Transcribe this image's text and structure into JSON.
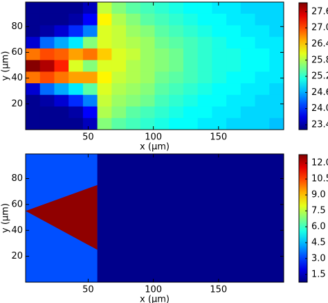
{
  "chart_data": [
    {
      "type": "heatmap",
      "xlabel": "x (μm)",
      "ylabel": "y (μm)",
      "xlim": [
        2,
        200
      ],
      "ylim": [
        0,
        99
      ],
      "xticks": [
        50,
        100,
        150
      ],
      "yticks": [
        20,
        40,
        60,
        80
      ],
      "clim": [
        23.22,
        27.93
      ],
      "cticks": [
        {
          "value": 23.4,
          "label": "23.40"
        },
        {
          "value": 24,
          "label": "24.00"
        },
        {
          "value": 24.6,
          "label": "24.60"
        },
        {
          "value": 25.2,
          "label": "25.20"
        },
        {
          "value": 25.8,
          "label": "25.80"
        },
        {
          "value": 26.4,
          "label": "26.40"
        },
        {
          "value": 27,
          "label": "27.00"
        },
        {
          "value": 27.6,
          "label": "27.60"
        }
      ],
      "z": [
        [
          23.3,
          23.3,
          23.3,
          23.6,
          26.8,
          27.9,
          26.8,
          23.6,
          23.3,
          23.3,
          23.3
        ],
        [
          23.3,
          23.3,
          23.4,
          24.3,
          27.0,
          27.7,
          27.0,
          24.3,
          23.4,
          23.3,
          23.3
        ],
        [
          23.3,
          23.3,
          23.6,
          24.6,
          26.9,
          27.2,
          26.8,
          24.6,
          23.6,
          23.3,
          23.3
        ],
        [
          23.3,
          23.4,
          24.0,
          24.9,
          26.6,
          26.0,
          26.6,
          24.9,
          24.0,
          23.4,
          23.3
        ],
        [
          23.5,
          23.8,
          24.4,
          25.6,
          26.8,
          25.6,
          26.6,
          25.4,
          24.4,
          23.8,
          23.5
        ],
        [
          25.9,
          26.2,
          26.0,
          26.0,
          26.4,
          26.0,
          26.2,
          26.0,
          25.9,
          25.8,
          25.6
        ],
        [
          25.6,
          25.8,
          25.9,
          25.9,
          26.0,
          26.0,
          25.9,
          25.8,
          25.7,
          25.6,
          25.4
        ],
        [
          25.4,
          25.6,
          25.7,
          25.8,
          25.9,
          25.8,
          25.8,
          25.7,
          25.6,
          25.4,
          25.3
        ],
        [
          25.3,
          25.4,
          25.6,
          25.7,
          25.7,
          25.7,
          25.7,
          25.6,
          25.5,
          25.3,
          25.2
        ],
        [
          25.2,
          25.3,
          25.4,
          25.5,
          25.6,
          25.6,
          25.5,
          25.4,
          25.3,
          25.2,
          25.1
        ],
        [
          25.1,
          25.2,
          25.3,
          25.4,
          25.5,
          25.5,
          25.4,
          25.3,
          25.2,
          25.1,
          25.0
        ],
        [
          25.0,
          25.1,
          25.2,
          25.3,
          25.3,
          25.3,
          25.3,
          25.2,
          25.1,
          25.0,
          25.0
        ],
        [
          25.0,
          25.0,
          25.1,
          25.2,
          25.2,
          25.2,
          25.2,
          25.1,
          25.0,
          25.0,
          24.9
        ],
        [
          24.9,
          25.0,
          25.0,
          25.1,
          25.1,
          25.1,
          25.1,
          25.0,
          25.0,
          24.9,
          24.9
        ],
        [
          24.9,
          24.9,
          25.0,
          25.0,
          25.1,
          25.1,
          25.0,
          25.0,
          24.9,
          24.9,
          24.8
        ],
        [
          24.8,
          24.9,
          24.9,
          25.0,
          25.0,
          25.0,
          25.0,
          24.9,
          24.9,
          24.8,
          24.8
        ],
        [
          24.8,
          24.8,
          24.9,
          24.9,
          25.0,
          25.0,
          24.9,
          24.9,
          24.8,
          24.8,
          24.8
        ],
        [
          24.8,
          24.8,
          24.8,
          24.9,
          24.9,
          24.9,
          24.9,
          24.8,
          24.8,
          24.8,
          24.7
        ]
      ]
    },
    {
      "type": "regions",
      "xlabel": "x (μm)",
      "ylabel": "y (μm)",
      "xlim": [
        2,
        200
      ],
      "ylim": [
        0,
        99
      ],
      "xticks": [
        50,
        100,
        150
      ],
      "yticks": [
        20,
        40,
        60,
        80
      ],
      "clim": [
        0.77,
        12.8
      ],
      "cticks": [
        1.5,
        {
          "value": 3,
          "label": "3.0"
        },
        4.5,
        {
          "value": 6,
          "label": "6.0"
        },
        7.5,
        {
          "value": 9,
          "label": "9.0"
        },
        {
          "value": 10.5,
          "label": "10.50"
        },
        {
          "value": 12,
          "label": "12.00"
        }
      ],
      "background": 0.9,
      "regions": [
        {
          "value": 3.2,
          "x": [
            2,
            57,
            57,
            2
          ],
          "y": [
            0,
            0,
            99,
            99
          ]
        },
        {
          "value": 12.6,
          "x": [
            2,
            57,
            57
          ],
          "y": [
            55,
            75,
            25
          ]
        }
      ]
    }
  ]
}
